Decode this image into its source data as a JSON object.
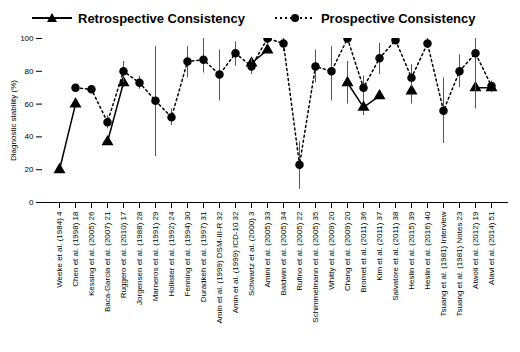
{
  "chart_data": {
    "type": "line",
    "y_label": "Diagnostic stability (%)",
    "categories": [
      "Weeke et al. (1984) 4",
      "Chen et al. (1998) 18",
      "Kessing et al. (2005) 26",
      "Baca-Garcia et al. (2007) 21",
      "Ruggero et al. (2010) 17",
      "Jorgensen et al. (1988) 28",
      "Marneros et al. (1991) 29",
      "Hollister et al. (1992) 24",
      "Fenning et al. (1994) 30",
      "Duradkeh et al. (1997) 31",
      "Amin et al. (1999) DSM-III-R 32",
      "Amin et al. (1999) ICD-10 32",
      "Schwartz et al. (2000) 3",
      "Amini et al. (2005) 33",
      "Baldwin et al. (2005) 34",
      "Rufino et al. (2005) 22",
      "Schimmelmann et al. (2005) 35",
      "Whitty et al. (2009) 20",
      "Chang et al. (2009) 20",
      "Bromet et al. (2011) 36",
      "Kim et al. (2011) 37",
      "Salvatore et al. (2011) 38",
      "Heslin et al. (2015) 39",
      "Heslin et al. (2016) 40",
      "Tsuang et al. (1981) Interview",
      "Tsuang et al. (1981) Notes 23",
      "Atwoli et al. (2012) 19",
      "Alavi et al. (2014) 51"
    ],
    "series": [
      {
        "name": "Retrospective Consistency",
        "color": "#000000",
        "marker": "triangle",
        "line_style": "solid",
        "values": [
          20,
          60,
          null,
          37,
          73,
          null,
          null,
          null,
          null,
          null,
          null,
          null,
          85,
          93,
          null,
          null,
          null,
          null,
          73,
          58,
          65,
          null,
          68,
          null,
          null,
          null,
          70,
          70
        ],
        "error_lower": [
          null,
          null,
          null,
          null,
          70,
          null,
          null,
          null,
          null,
          null,
          null,
          null,
          null,
          null,
          null,
          null,
          null,
          null,
          60,
          53,
          null,
          null,
          60,
          null,
          null,
          null,
          62,
          67
        ],
        "error_upper": [
          null,
          null,
          null,
          null,
          78,
          null,
          null,
          null,
          null,
          null,
          null,
          null,
          null,
          null,
          null,
          null,
          null,
          null,
          86,
          63,
          null,
          null,
          75,
          null,
          null,
          null,
          78,
          73
        ]
      },
      {
        "name": "Prospective Consistency",
        "color": "#000000",
        "marker": "circle",
        "line_style": "dotted",
        "values": [
          null,
          70,
          69,
          49,
          80,
          73,
          62,
          52,
          86,
          87,
          78,
          91,
          83,
          100,
          97,
          23,
          83,
          80,
          100,
          70,
          88,
          99,
          76,
          97,
          56,
          80,
          91,
          71
        ],
        "error_lower": [
          null,
          null,
          null,
          45,
          73,
          69,
          28,
          47,
          76,
          79,
          62,
          83,
          78,
          96,
          92,
          8,
          73,
          62,
          null,
          63,
          78,
          null,
          70,
          94,
          36,
          70,
          57,
          68
        ],
        "error_upper": [
          null,
          null,
          null,
          53,
          86,
          77,
          95,
          57,
          95,
          100,
          93,
          98,
          88,
          100,
          100,
          37,
          93,
          95,
          null,
          77,
          97,
          null,
          84,
          100,
          76,
          90,
          100,
          74
        ]
      }
    ],
    "ylim": [
      0,
      100
    ],
    "yticks": [
      0,
      20,
      40,
      60,
      80,
      100
    ],
    "grid": false,
    "legend": "top"
  }
}
